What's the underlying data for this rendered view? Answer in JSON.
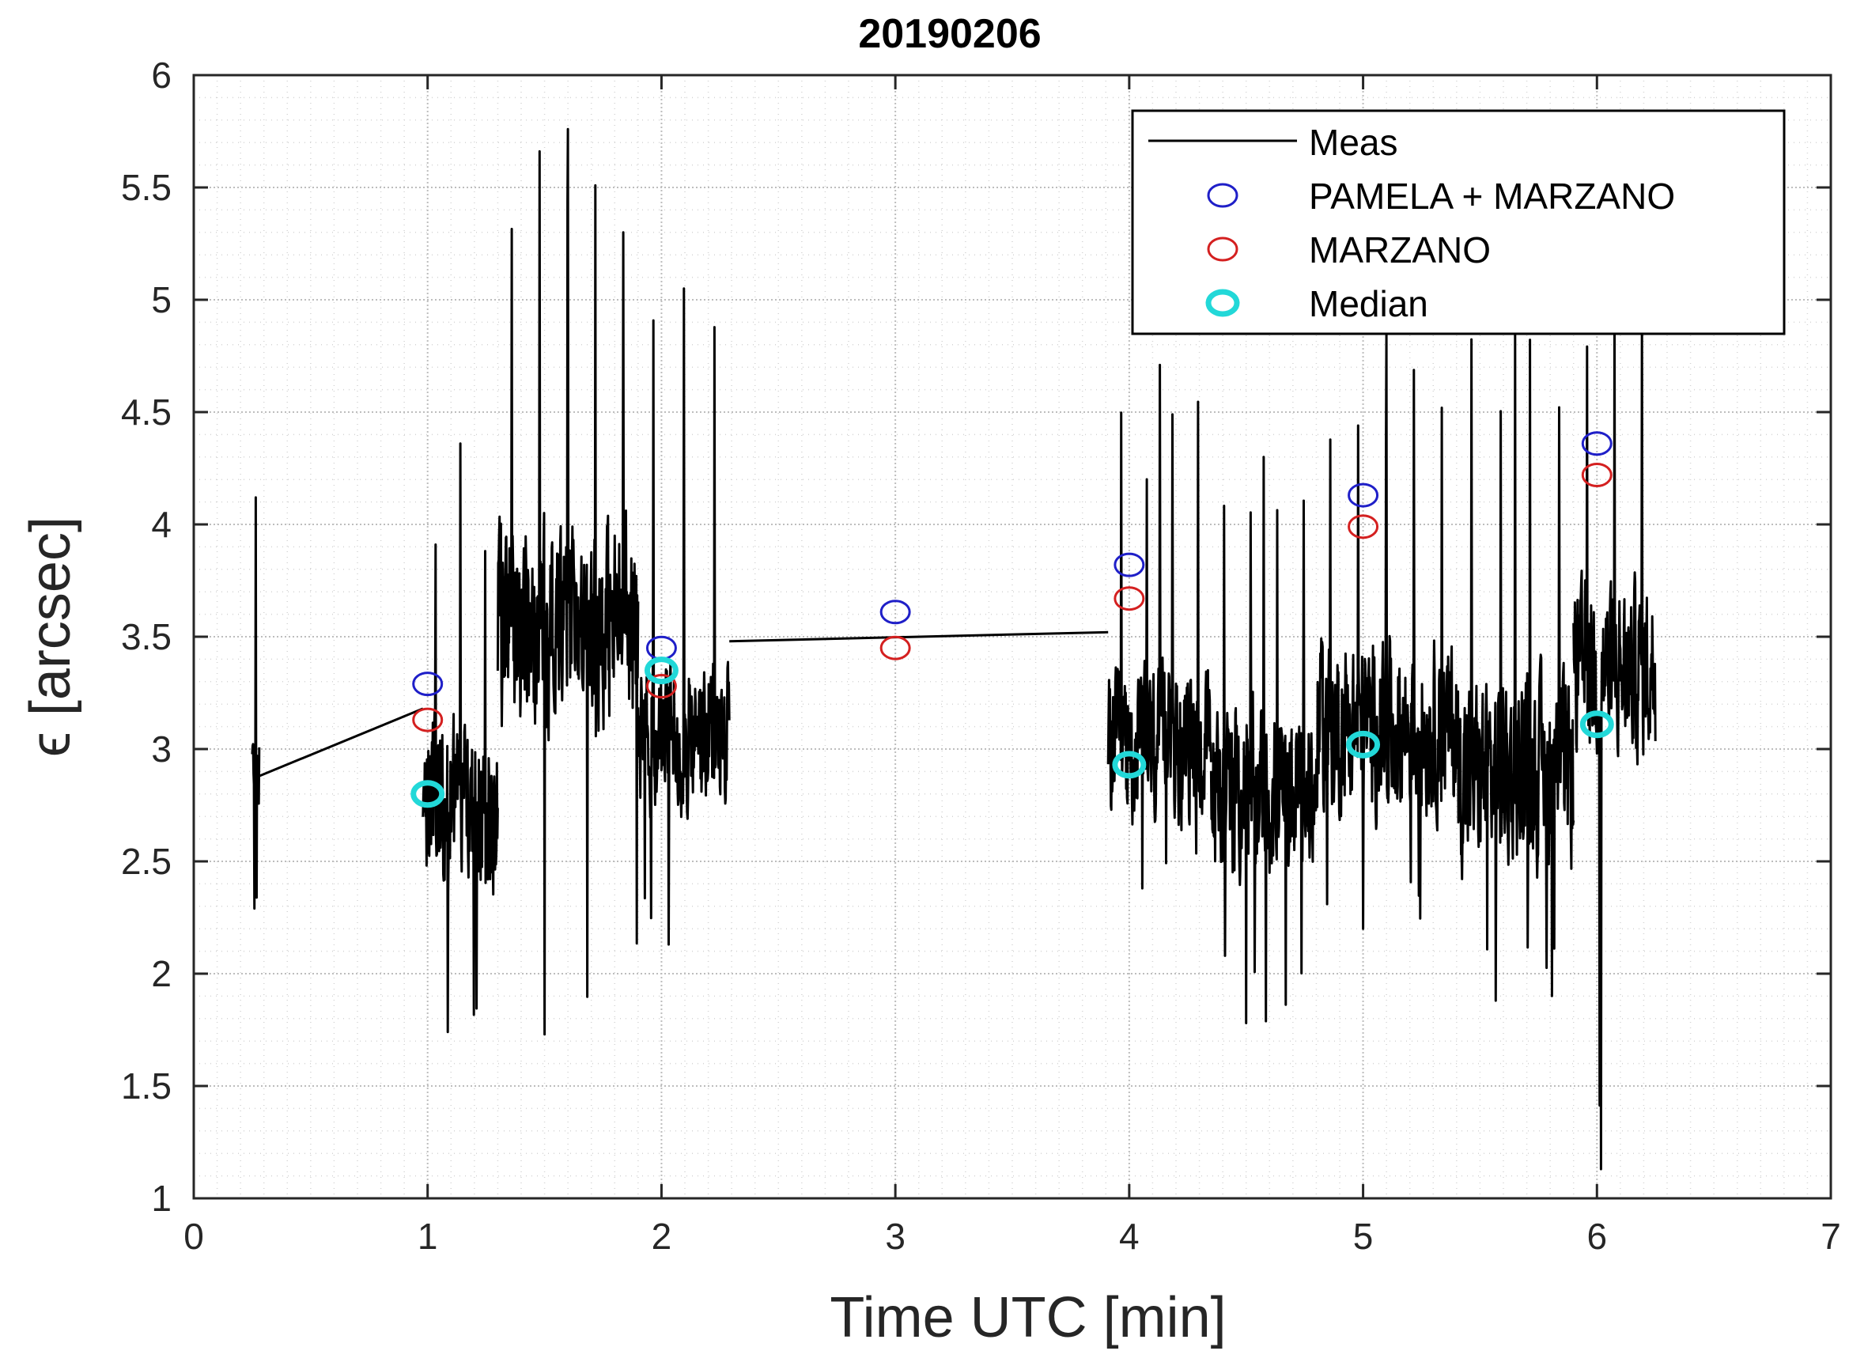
{
  "chart_data": {
    "type": "scatter",
    "title": "20190206",
    "xlabel": "Time UTC [min]",
    "ylabel": "ϵ [arcsec]",
    "xlim": [
      0,
      7
    ],
    "ylim": [
      1,
      6
    ],
    "xticks": [
      0,
      1,
      2,
      3,
      4,
      5,
      6,
      7
    ],
    "xtick_labels": [
      "0",
      "1",
      "2",
      "3",
      "4",
      "5",
      "6",
      "7"
    ],
    "yticks": [
      1,
      1.5,
      2,
      2.5,
      3,
      3.5,
      4,
      4.5,
      5,
      5.5,
      6
    ],
    "ytick_labels": [
      "1",
      "1.5",
      "2",
      "2.5",
      "3",
      "3.5",
      "4",
      "4.5",
      "5",
      "5.5",
      "6"
    ],
    "grid": true,
    "legend_position": "top-right",
    "series": [
      {
        "name": "Meas",
        "kind": "line",
        "color": "#000000",
        "segments": [
          {
            "x_start": 0.25,
            "x_end": 0.28,
            "mean": 2.9,
            "amp": 0.35,
            "min": 2.29,
            "max": 4.12
          },
          {
            "x_start": 0.28,
            "x_end": 0.98,
            "mean": null,
            "from": 2.88,
            "to": 3.18
          },
          {
            "x_start": 0.98,
            "x_end": 1.3,
            "mean": 2.75,
            "amp": 0.5,
            "min": 1.74,
            "max": 4.36
          },
          {
            "x_start": 1.3,
            "x_end": 1.9,
            "mean": 3.55,
            "amp": 0.6,
            "min": 1.73,
            "max": 5.76
          },
          {
            "x_start": 1.9,
            "x_end": 2.29,
            "mean": 3.05,
            "amp": 0.45,
            "min": 2.13,
            "max": 5.05
          },
          {
            "x_start": 2.29,
            "x_end": 3.91,
            "mean": null,
            "from": 3.48,
            "to": 3.52
          },
          {
            "x_start": 3.91,
            "x_end": 4.35,
            "mean": 3.0,
            "amp": 0.45,
            "min": 2.38,
            "max": 4.71
          },
          {
            "x_start": 4.35,
            "x_end": 4.8,
            "mean": 2.8,
            "amp": 0.5,
            "min": 1.78,
            "max": 4.3
          },
          {
            "x_start": 4.8,
            "x_end": 5.4,
            "mean": 3.1,
            "amp": 0.5,
            "min": 2.2,
            "max": 4.85
          },
          {
            "x_start": 5.4,
            "x_end": 5.9,
            "mean": 2.9,
            "amp": 0.55,
            "min": 1.88,
            "max": 4.86
          },
          {
            "x_start": 5.9,
            "x_end": 6.25,
            "mean": 3.35,
            "amp": 0.5,
            "min": 1.13,
            "max": 4.95
          }
        ]
      },
      {
        "name": "PAMELA + MARZANO",
        "kind": "marker",
        "color": "#1f1fc8",
        "x": [
          1,
          2,
          3,
          4,
          5,
          6
        ],
        "y": [
          3.29,
          3.45,
          3.61,
          3.82,
          4.13,
          4.36
        ]
      },
      {
        "name": "MARZANO",
        "kind": "marker",
        "color": "#d42020",
        "x": [
          1,
          2,
          3,
          4,
          5,
          6
        ],
        "y": [
          3.13,
          3.28,
          3.45,
          3.67,
          3.99,
          4.22
        ]
      },
      {
        "name": "Median",
        "kind": "marker",
        "color": "#22d8d8",
        "x": [
          1,
          2,
          4,
          5,
          6
        ],
        "y": [
          2.8,
          3.35,
          2.93,
          3.02,
          3.11
        ]
      }
    ]
  },
  "legend": {
    "entries": [
      "Meas",
      "PAMELA + MARZANO",
      "MARZANO",
      "Median"
    ]
  }
}
